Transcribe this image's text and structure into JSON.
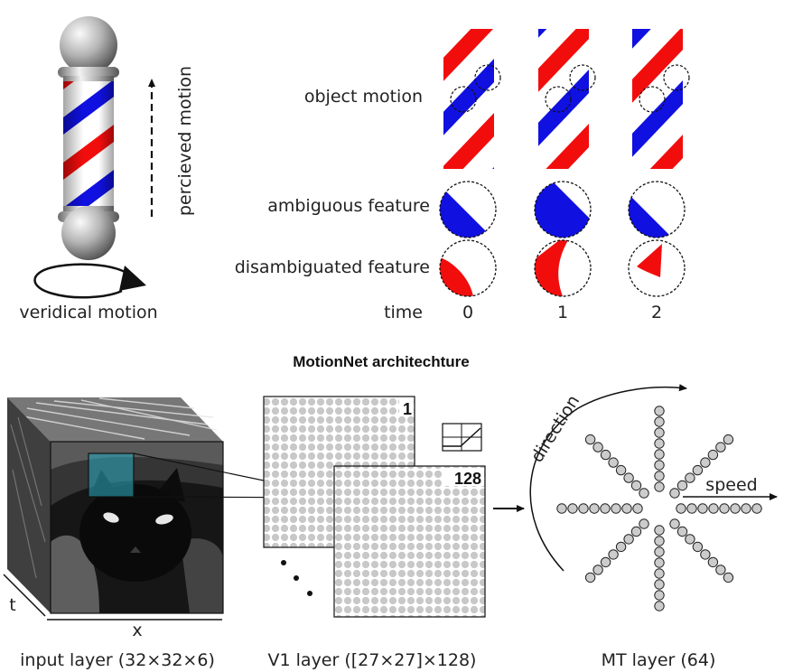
{
  "top": {
    "perceived_label": "percieved motion",
    "veridical_label": "veridical motion",
    "row_labels": {
      "object_motion": "object motion",
      "ambiguous": "ambiguous feature",
      "disambiguated": "disambiguated feature",
      "time": "time"
    },
    "time_values": [
      "0",
      "1",
      "2"
    ]
  },
  "bottom": {
    "title": "MotionNet architechture",
    "input_caption": "input layer (32×32×6)",
    "v1_caption": "V1 layer ([27×27]×128)",
    "mt_caption": "MT layer (64)",
    "axis_t": "t",
    "axis_x": "x",
    "v1_index_first": "1",
    "v1_index_last": "128",
    "mt_direction_label": "direction",
    "mt_speed_label": "speed"
  },
  "colors": {
    "stripe_red": "#f20d0d",
    "stripe_blue": "#1010e0",
    "input_highlight": "#2aa3b8",
    "unit_fill": "#cccccc"
  }
}
